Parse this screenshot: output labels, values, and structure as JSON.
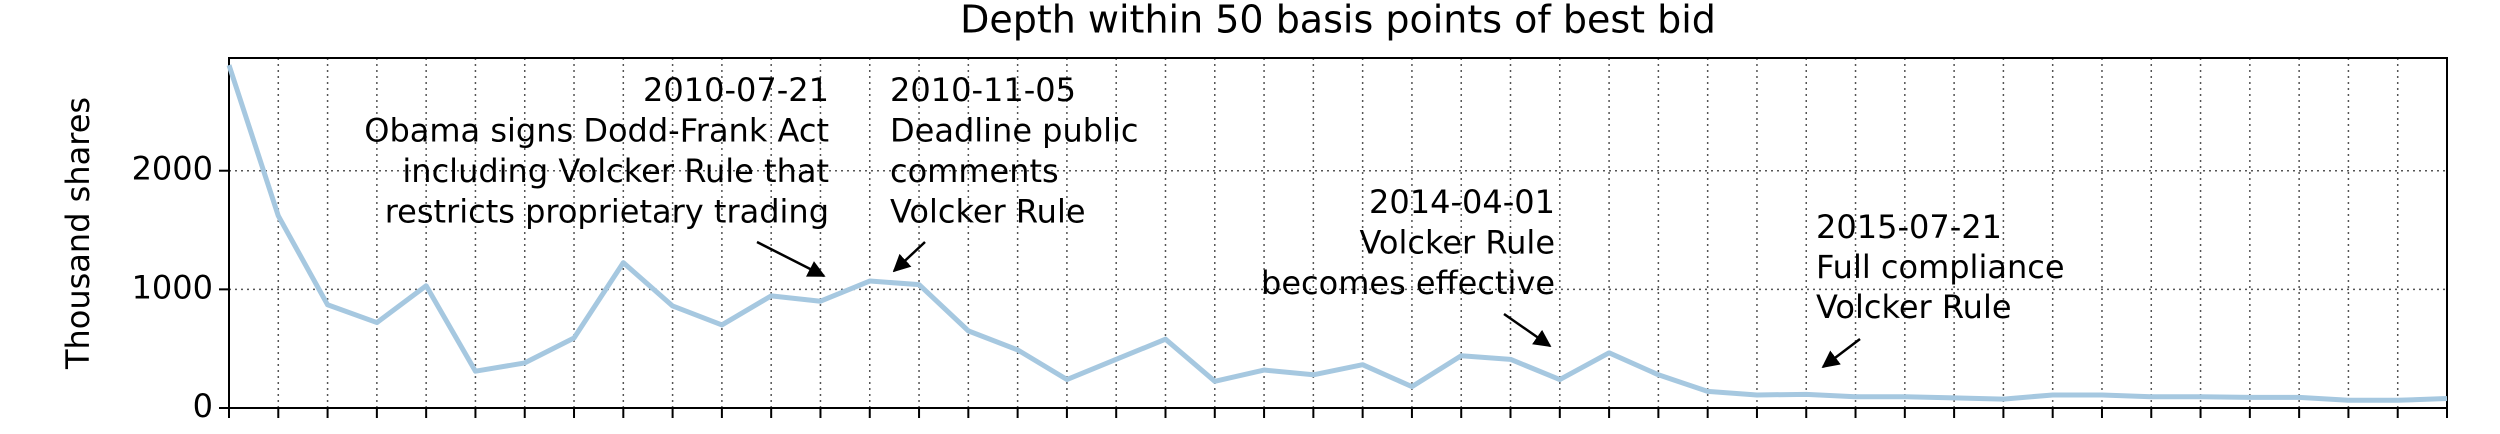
{
  "chart_data": {
    "type": "line",
    "title": "Depth within 50 basis points of best bid",
    "y_label": "Thousand shares",
    "categories": [
      null,
      null,
      null,
      null,
      null,
      null,
      null,
      null,
      null,
      null,
      null,
      null,
      null,
      null,
      null,
      null,
      null,
      null,
      null,
      null,
      null,
      null,
      null,
      null,
      null,
      null,
      null,
      null,
      null,
      null,
      null,
      null,
      null,
      null,
      null,
      null,
      null,
      null,
      null,
      null,
      null,
      null,
      null,
      null,
      null,
      null
    ],
    "series": [
      {
        "name": "Depth",
        "color": "#a6c8e0",
        "values": [
          2890,
          1620,
          870,
          720,
          1030,
          310,
          380,
          590,
          1225,
          860,
          700,
          945,
          900,
          1070,
          1040,
          650,
          490,
          240,
          410,
          580,
          225,
          320,
          280,
          365,
          180,
          440,
          410,
          240,
          465,
          280,
          140,
          110,
          115,
          95,
          95,
          85,
          75,
          110,
          110,
          95,
          95,
          90,
          90,
          65,
          65,
          80
        ]
      }
    ],
    "ylim": [
      0,
      2950
    ],
    "yticks": [
      0,
      1000,
      2000
    ],
    "grid": true,
    "annotations": [
      {
        "lines": [
          "2010-07-21",
          "Obama signs Dodd-Frank Act",
          "including Volcker Rule that",
          "restricts proprietary trading"
        ]
      },
      {
        "lines": [
          "2010-11-05",
          "Deadline public",
          "comments",
          "Volcker Rule"
        ]
      },
      {
        "lines": [
          "2014-04-01",
          "Volcker Rule",
          "becomes effective"
        ]
      },
      {
        "lines": [
          "2015-07-21",
          "Full compliance",
          "Volcker Rule"
        ]
      }
    ]
  }
}
